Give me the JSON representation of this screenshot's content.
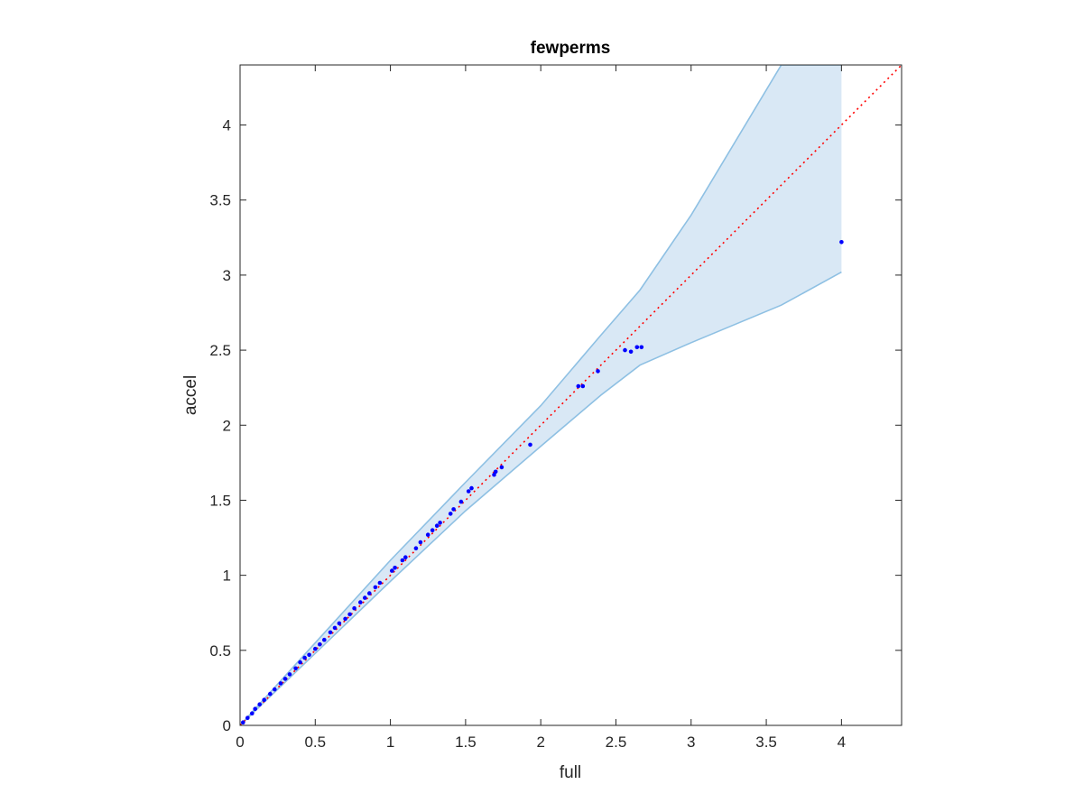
{
  "chart_data": {
    "type": "scatter",
    "title": "fewperms",
    "xlabel": "full",
    "ylabel": "accel",
    "xlim": [
      0,
      4.4
    ],
    "ylim": [
      0,
      4.4
    ],
    "xticks": [
      0,
      0.5,
      1,
      1.5,
      2,
      2.5,
      3,
      3.5,
      4
    ],
    "xtick_labels": [
      "0",
      "0.5",
      "1",
      "1.5",
      "2",
      "2.5",
      "3",
      "3.5",
      "4"
    ],
    "yticks": [
      0,
      0.5,
      1,
      1.5,
      2,
      2.5,
      3,
      3.5,
      4
    ],
    "ytick_labels": [
      "0",
      "0.5",
      "1",
      "1.5",
      "2",
      "2.5",
      "3",
      "3.5",
      "4"
    ],
    "grid": false,
    "box": true,
    "colors": {
      "points": "#0000ff",
      "reference_line": "#ff0000",
      "band_fill": "#d9e8f5",
      "band_edge": "#8ec0e3",
      "axes": "#262626"
    },
    "band": {
      "x": [
        0,
        1,
        1.5,
        2,
        2.4,
        2.66,
        3,
        3.6,
        4
      ],
      "upper": [
        0,
        1.1,
        1.62,
        2.13,
        2.6,
        2.9,
        3.4,
        4.4,
        4.4
      ],
      "lower": [
        0,
        0.96,
        1.43,
        1.86,
        2.2,
        2.4,
        2.55,
        2.8,
        3.02
      ]
    },
    "reference_line": {
      "x": [
        0,
        4.4
      ],
      "y": [
        0,
        4.4
      ],
      "style": "dotted"
    },
    "points": {
      "x": [
        0.02,
        0.05,
        0.08,
        0.1,
        0.13,
        0.16,
        0.2,
        0.23,
        0.27,
        0.3,
        0.33,
        0.37,
        0.4,
        0.43,
        0.46,
        0.5,
        0.53,
        0.56,
        0.6,
        0.63,
        0.66,
        0.7,
        0.73,
        0.76,
        0.8,
        0.83,
        0.86,
        0.9,
        0.93,
        1.01,
        1.03,
        1.08,
        1.1,
        1.17,
        1.2,
        1.25,
        1.28,
        1.31,
        1.33,
        1.4,
        1.42,
        1.47,
        1.52,
        1.54,
        1.69,
        1.7,
        1.74,
        1.93,
        2.25,
        2.28,
        2.38,
        2.56,
        2.6,
        2.64,
        2.67,
        4.0
      ],
      "y": [
        0.02,
        0.05,
        0.08,
        0.11,
        0.14,
        0.17,
        0.21,
        0.24,
        0.28,
        0.31,
        0.34,
        0.38,
        0.42,
        0.45,
        0.47,
        0.51,
        0.54,
        0.57,
        0.62,
        0.65,
        0.68,
        0.71,
        0.74,
        0.78,
        0.82,
        0.85,
        0.88,
        0.92,
        0.95,
        1.03,
        1.05,
        1.1,
        1.12,
        1.18,
        1.22,
        1.27,
        1.3,
        1.33,
        1.35,
        1.41,
        1.44,
        1.49,
        1.56,
        1.58,
        1.67,
        1.69,
        1.72,
        1.87,
        2.26,
        2.26,
        2.36,
        2.5,
        2.49,
        2.52,
        2.52,
        3.22
      ]
    }
  }
}
